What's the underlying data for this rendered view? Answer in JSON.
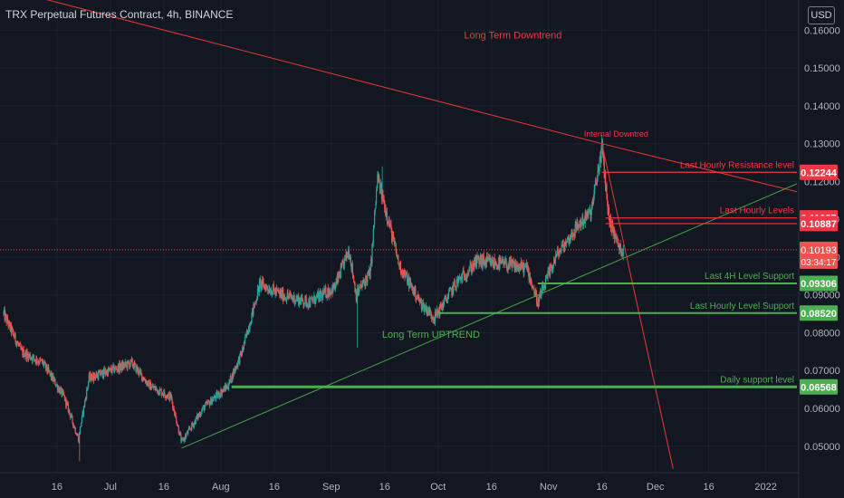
{
  "header": {
    "title": "TRX Perpetual Futures Contract, 4h, BINANCE",
    "currency_button": "USD"
  },
  "colors": {
    "background": "#131722",
    "grid": "#1e222d",
    "text": "#b2b5be",
    "up": "#26a69a",
    "down": "#ef5350",
    "resistance": "#f23645",
    "support": "#4caf50",
    "downtrend": "#e53935",
    "uptrend": "#43a047"
  },
  "chart_data": {
    "type": "candlestick",
    "title": "TRX Perpetual Futures Contract, 4h, BINANCE",
    "ylim": [
      0.043,
      0.168
    ],
    "y_ticks": [
      "0.16000",
      "0.15000",
      "0.14000",
      "0.13000",
      "0.12000",
      "0.11000",
      "0.10000",
      "0.09000",
      "0.08000",
      "0.07000",
      "0.06000",
      "0.05000"
    ],
    "x_ticks": [
      "16",
      "Jul",
      "16",
      "Aug",
      "16",
      "Sep",
      "16",
      "Oct",
      "16",
      "Nov",
      "16",
      "Dec",
      "16",
      "2022"
    ],
    "x_range": [
      "2021-05-31",
      "2022-01-10"
    ],
    "price_path": [
      {
        "date": "2021-06-01",
        "price": 0.085
      },
      {
        "date": "2021-06-06",
        "price": 0.075
      },
      {
        "date": "2021-06-12",
        "price": 0.072
      },
      {
        "date": "2021-06-18",
        "price": 0.063
      },
      {
        "date": "2021-06-22",
        "price": 0.052
      },
      {
        "date": "2021-06-25",
        "price": 0.068
      },
      {
        "date": "2021-07-01",
        "price": 0.07
      },
      {
        "date": "2021-07-07",
        "price": 0.072
      },
      {
        "date": "2021-07-12",
        "price": 0.066
      },
      {
        "date": "2021-07-18",
        "price": 0.063
      },
      {
        "date": "2021-07-21",
        "price": 0.051
      },
      {
        "date": "2021-07-27",
        "price": 0.06
      },
      {
        "date": "2021-08-03",
        "price": 0.066
      },
      {
        "date": "2021-08-07",
        "price": 0.075
      },
      {
        "date": "2021-08-12",
        "price": 0.093
      },
      {
        "date": "2021-08-18",
        "price": 0.09
      },
      {
        "date": "2021-08-26",
        "price": 0.088
      },
      {
        "date": "2021-09-02",
        "price": 0.092
      },
      {
        "date": "2021-09-06",
        "price": 0.102
      },
      {
        "date": "2021-09-08",
        "price": 0.09
      },
      {
        "date": "2021-09-12",
        "price": 0.096
      },
      {
        "date": "2021-09-14",
        "price": 0.121
      },
      {
        "date": "2021-09-17",
        "price": 0.11
      },
      {
        "date": "2021-09-20",
        "price": 0.098
      },
      {
        "date": "2021-09-26",
        "price": 0.088
      },
      {
        "date": "2021-09-30",
        "price": 0.084
      },
      {
        "date": "2021-10-06",
        "price": 0.093
      },
      {
        "date": "2021-10-12",
        "price": 0.099
      },
      {
        "date": "2021-10-20",
        "price": 0.098
      },
      {
        "date": "2021-10-26",
        "price": 0.097
      },
      {
        "date": "2021-10-29",
        "price": 0.088
      },
      {
        "date": "2021-11-03",
        "price": 0.1
      },
      {
        "date": "2021-11-09",
        "price": 0.108
      },
      {
        "date": "2021-11-13",
        "price": 0.112
      },
      {
        "date": "2021-11-16",
        "price": 0.129
      },
      {
        "date": "2021-11-18",
        "price": 0.11
      },
      {
        "date": "2021-11-21",
        "price": 0.102
      },
      {
        "date": "2021-11-22",
        "price": 0.102
      }
    ],
    "spikes": [
      {
        "date": "2021-06-22",
        "low": 0.046
      },
      {
        "date": "2021-09-08",
        "low": 0.076
      },
      {
        "date": "2021-09-15",
        "high": 0.124
      },
      {
        "date": "2021-10-29",
        "low": 0.087
      },
      {
        "date": "2021-11-16",
        "high": 0.13
      }
    ],
    "trendlines": [
      {
        "name": "Long Term Downtrend",
        "points": [
          {
            "date": "2021-05-24",
            "price": 0.173
          },
          {
            "date": "2021-11-16",
            "price": 0.13
          },
          {
            "date": "2022-01-11",
            "price": 0.117
          }
        ]
      },
      {
        "name": "Long Term UPTREND",
        "points": [
          {
            "date": "2021-07-21",
            "price": 0.0495
          },
          {
            "date": "2022-01-10",
            "price": 0.1195
          }
        ]
      },
      {
        "name": "Internal Downtred",
        "points": [
          {
            "date": "2021-11-16",
            "price": 0.13
          },
          {
            "date": "2021-12-06",
            "price": 0.044
          }
        ]
      }
    ],
    "levels": [
      {
        "label": "Last Hourly Resistance level",
        "value": "0.12244",
        "price": 0.12244,
        "start": "2021-11-16",
        "kind": "resistance"
      },
      {
        "label": "Last Hourly Levels",
        "value": "0.11037",
        "price": 0.11037,
        "start": "2021-11-17",
        "kind": "resistance"
      },
      {
        "label": "",
        "value": "0.10887",
        "price": 0.10887,
        "start": "2021-11-17",
        "kind": "resistance"
      },
      {
        "label": "Last 4H Level Support",
        "value": "0.09306",
        "price": 0.09306,
        "start": "2021-10-29",
        "kind": "support"
      },
      {
        "label": "Last Hourly Level Support",
        "value": "0.08520",
        "price": 0.0852,
        "start": "2021-10-01",
        "kind": "support"
      },
      {
        "label": "Daily support level",
        "value": "0.06568",
        "price": 0.06568,
        "start": "2021-08-04",
        "kind": "support"
      }
    ],
    "current_price": {
      "value": "0.10193",
      "price": 0.10193,
      "countdown": "03:34:17"
    },
    "annotations": [
      {
        "text": "Long Term Downtrend",
        "date": "2021-10-22",
        "price": 0.1578,
        "kind": "resistance"
      },
      {
        "text": "Internal Downtred",
        "date": "2021-11-20",
        "price": 0.1319,
        "kind": "resistance"
      },
      {
        "text": "Long Term UPTREND",
        "date": "2021-09-29",
        "price": 0.0787,
        "kind": "support"
      }
    ]
  }
}
